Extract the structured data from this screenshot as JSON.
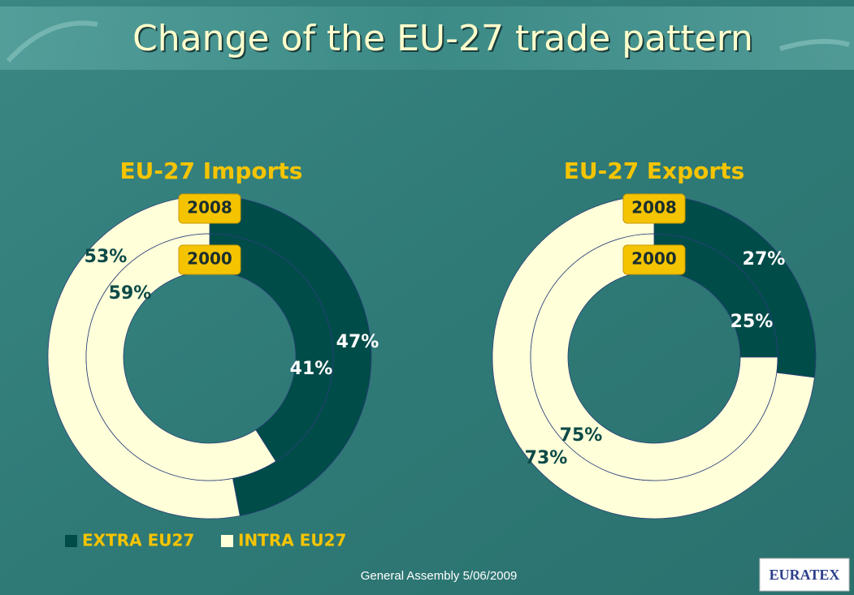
{
  "title": "Change of the EU-27 trade pattern",
  "footer": "General Assembly 5/06/2009",
  "logo": "EURATEX",
  "legend": [
    {
      "name": "EXTRA EU27",
      "color": "#004c49"
    },
    {
      "name": "INTRA EU27",
      "color": "#ffffd9"
    }
  ],
  "chart_data": [
    {
      "type": "donut",
      "title": "EU-27 Imports",
      "categories": [
        "2008",
        "2000"
      ],
      "series": [
        {
          "values": [
            47,
            41
          ],
          "value_labels": [
            "47%",
            "41%"
          ]
        },
        {
          "values": [
            53,
            59
          ],
          "value_labels": [
            "53%",
            "59%"
          ]
        }
      ]
    },
    {
      "type": "donut",
      "title": "EU-27 Exports",
      "categories": [
        "2008",
        "2000"
      ],
      "series": [
        {
          "values": [
            27,
            25
          ],
          "value_labels": [
            "27%",
            "25%"
          ]
        },
        {
          "values": [
            73,
            75
          ],
          "value_labels": [
            "73%",
            "75%"
          ]
        }
      ]
    }
  ]
}
